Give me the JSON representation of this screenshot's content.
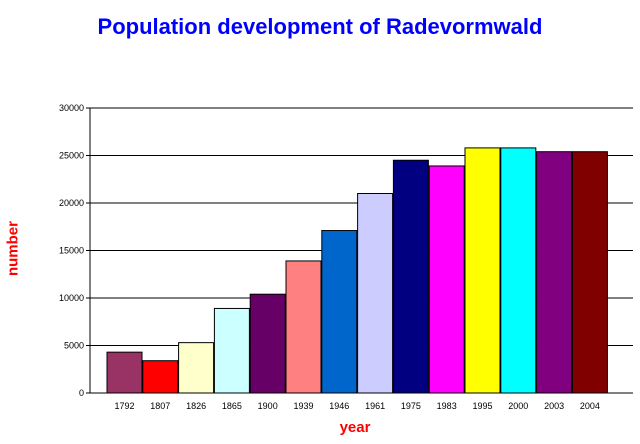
{
  "chart_data": {
    "type": "bar",
    "title": "Population development of Radevormwald",
    "xlabel": "year",
    "ylabel": "number",
    "categories": [
      "1792",
      "1807",
      "1826",
      "1865",
      "1900",
      "1939",
      "1946",
      "1961",
      "1975",
      "1983",
      "1995",
      "2000",
      "2003",
      "2004"
    ],
    "values": [
      4300,
      3400,
      5300,
      8900,
      10400,
      13900,
      17100,
      21000,
      24500,
      23900,
      25800,
      25800,
      25400,
      25400
    ],
    "bar_colors": [
      "#993366",
      "#ff0000",
      "#ffffcc",
      "#ccffff",
      "#660066",
      "#ff8080",
      "#0066cc",
      "#ccccff",
      "#000080",
      "#ff00ff",
      "#ffff00",
      "#00ffff",
      "#800080",
      "#800000"
    ],
    "ylim": [
      0,
      30000
    ],
    "yticks": [
      "0",
      "5000",
      "10000",
      "15000",
      "20000",
      "25000",
      "30000"
    ],
    "grid": true,
    "legend": "none"
  },
  "colors": {
    "title": "#0000ff",
    "axis_label": "#ff0000"
  }
}
